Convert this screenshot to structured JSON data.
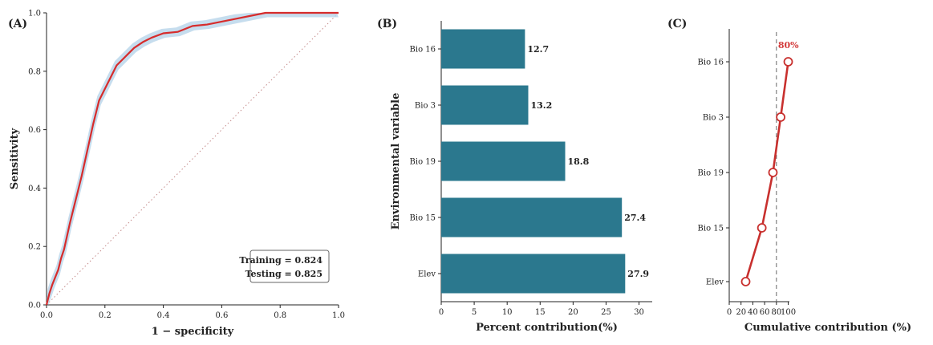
{
  "chart_data": [
    {
      "panel": "(A)",
      "type": "line",
      "xlabel": "1 − specificity",
      "ylabel": "Sensitivity",
      "xlim": [
        0,
        1
      ],
      "ylim": [
        0,
        1
      ],
      "xticks": [
        "0.0",
        "0.2",
        "0.4",
        "0.6",
        "0.8",
        "1.0"
      ],
      "yticks": [
        "0.0",
        "0.2",
        "0.4",
        "0.6",
        "0.8",
        "1.0"
      ],
      "colors": {
        "roc": "#d62c2c",
        "band": "#b8d4ea",
        "diagonal": "#c48a8a"
      },
      "roc": {
        "x": [
          0,
          0.01,
          0.02,
          0.04,
          0.05,
          0.06,
          0.08,
          0.1,
          0.12,
          0.14,
          0.16,
          0.18,
          0.2,
          0.22,
          0.24,
          0.26,
          0.28,
          0.3,
          0.33,
          0.36,
          0.4,
          0.45,
          0.5,
          0.55,
          0.6,
          0.65,
          0.7,
          0.75,
          1.0
        ],
        "y": [
          0,
          0.04,
          0.07,
          0.12,
          0.16,
          0.19,
          0.28,
          0.36,
          0.44,
          0.53,
          0.62,
          0.7,
          0.74,
          0.78,
          0.82,
          0.84,
          0.86,
          0.88,
          0.9,
          0.915,
          0.93,
          0.935,
          0.955,
          0.96,
          0.97,
          0.98,
          0.99,
          1.0,
          1.0
        ]
      },
      "legend": [
        "Training = 0.824",
        "Testing = 0.825"
      ],
      "legend_position": "bottom-right"
    },
    {
      "panel": "(B)",
      "type": "bar",
      "orientation": "horizontal",
      "categories": [
        "Bio 16",
        "Bio 3",
        "Bio 19",
        "Bio 15",
        "Elev"
      ],
      "values": [
        12.7,
        13.2,
        18.8,
        27.4,
        27.9
      ],
      "value_labels": [
        "12.7",
        "13.2",
        "18.8",
        "27.4",
        "27.9"
      ],
      "xlabel": "Percent contribution(%)",
      "ylabel": "Environmental variable",
      "xlim": [
        0,
        32
      ],
      "xticks": [
        "0",
        "5",
        "10",
        "15",
        "20",
        "25",
        "30"
      ],
      "bar_color": "#2b788e"
    },
    {
      "panel": "(C)",
      "type": "line",
      "categories": [
        "Bio 16",
        "Bio 3",
        "Bio 19",
        "Bio 15",
        "Elev"
      ],
      "values": [
        100,
        87.2,
        74.1,
        55.3,
        27.9
      ],
      "xlabel": "Cumulative contribution (%)",
      "xlim": [
        0,
        102
      ],
      "xticks": [
        "0",
        "20",
        "40",
        "60",
        "80",
        "100"
      ],
      "threshold": 80,
      "threshold_label": "80%",
      "line_color": "#c8302e"
    }
  ]
}
